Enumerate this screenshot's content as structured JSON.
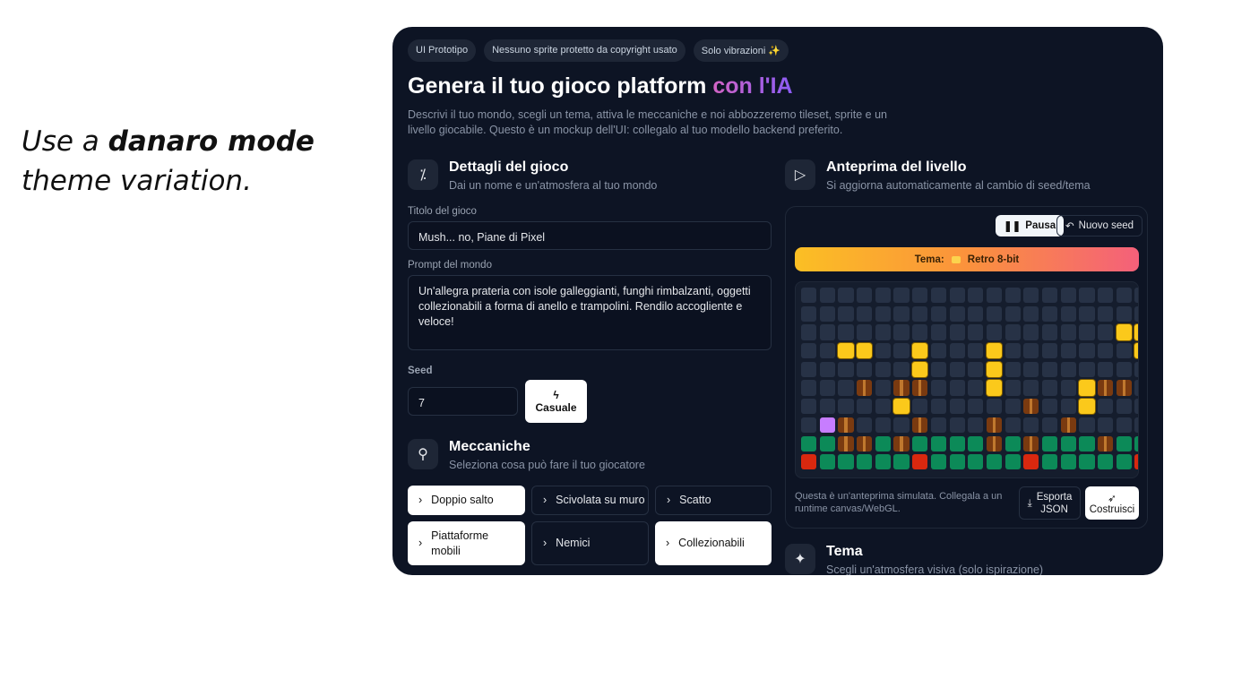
{
  "caption": {
    "pre": "Use a ",
    "bold": "danaro mode",
    "post": "theme variation."
  },
  "badges": [
    "UI Prototipo",
    "Nessuno sprite protetto da copyright usato",
    "Solo vibrazioni ✨"
  ],
  "title": {
    "main": "Genera il tuo gioco platform ",
    "accent": "con l'IA"
  },
  "description": "Descrivi il tuo mondo, scegli un tema, attiva le meccaniche e noi abbozzeremo tileset, sprite e un livello giocabile. Questo è un mockup dell'UI: collegalo al tuo modello backend preferito.",
  "details": {
    "title": "Dettagli del gioco",
    "subtitle": "Dai un nome e un'atmosfera al tuo mondo",
    "game_title_label": "Titolo del gioco",
    "game_title_value": "Mush... no, Piane di Pixel",
    "prompt_label": "Prompt del mondo",
    "prompt_value": "Un'allegra prateria con isole galleggianti, funghi rimbalzanti, oggetti collezionabili a forma di anello e trampolini. Rendilo accogliente e veloce!",
    "seed_label": "Seed",
    "seed_value": "7",
    "random_label": "Casuale"
  },
  "mechanics": {
    "title": "Meccaniche",
    "subtitle": "Seleziona cosa può fare il tuo giocatore",
    "items": [
      {
        "label": "Doppio salto",
        "selected": true
      },
      {
        "label": "Scivolata su muro",
        "selected": false
      },
      {
        "label": "Scatto",
        "selected": false
      },
      {
        "label": "Piattaforme mobili",
        "selected": true
      },
      {
        "label": "Nemici",
        "selected": false
      },
      {
        "label": "Collezionabili",
        "selected": true
      }
    ]
  },
  "preview": {
    "title": "Anteprima del livello",
    "subtitle": "Si aggiorna automaticamente al cambio di seed/tema",
    "pause_label": "Pausa",
    "new_seed_label": "Nuovo seed",
    "theme_label": "Tema:",
    "theme_value": "Retro 8-bit",
    "level": [
      "eeeeeeeeeeeeeeeeeee",
      "eeeeeeeeeeeeeeeeeee",
      "eeeeeeeeeeeeeeeeeyy",
      "eeyyeeyeeeyeeeeeeey",
      "eeeeeeyeeeyeeeeeeee",
      "eeebebbeeeyeeeeybbe",
      "eeeeeyeeeeeebeeyeee",
      "epbeeebeeebeeebeeee",
      "ggbbgbggggbgbgggbgg",
      "rgggggrgggggrgggggr"
    ],
    "note": "Questa è un'anteprima simulata. Collegala a un runtime canvas/WebGL.",
    "export_label": "Esporta JSON",
    "build_label": "Costruisci"
  },
  "theme_section": {
    "title": "Tema",
    "subtitle": "Scegli un'atmosfera visiva (solo ispirazione)"
  }
}
